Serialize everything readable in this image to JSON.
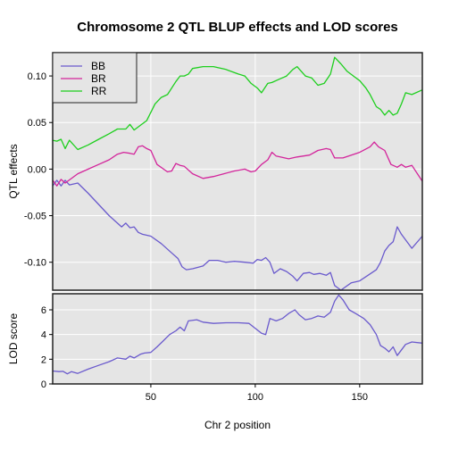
{
  "chart_data": {
    "title": "Chromosome 2 QTL BLUP effects and LOD scores",
    "xlabel": "Chr 2 position",
    "x_ticks": [
      50,
      100,
      150
    ],
    "xlim": [
      3,
      180
    ],
    "grid": true,
    "colors": {
      "panel_bg": "#e5e5e5",
      "grid": "#ffffff",
      "BB": "#6a5acd",
      "BR": "#d3259b",
      "RR": "#1ecf1e",
      "LOD": "#6a5acd"
    },
    "panels": [
      {
        "type": "line",
        "ylabel": "QTL effects",
        "ylim": [
          -0.13,
          0.125
        ],
        "y_ticks": [
          {
            "v": 0.1,
            "label": "0.10"
          },
          {
            "v": 0.05,
            "label": "0.05"
          },
          {
            "v": 0.0,
            "label": "0.00"
          },
          {
            "v": -0.05,
            "label": "-0.05"
          },
          {
            "v": -0.1,
            "label": "-0.10"
          }
        ],
        "legend": {
          "placement": "top-left",
          "entries": [
            "BB",
            "BR",
            "RR"
          ]
        },
        "series": [
          {
            "name": "BB",
            "points": [
              [
                3,
                -0.018
              ],
              [
                5,
                -0.012
              ],
              [
                7,
                -0.018
              ],
              [
                9,
                -0.012
              ],
              [
                11,
                -0.017
              ],
              [
                15,
                -0.015
              ],
              [
                20,
                -0.026
              ],
              [
                25,
                -0.038
              ],
              [
                30,
                -0.05
              ],
              [
                34,
                -0.058
              ],
              [
                36,
                -0.062
              ],
              [
                38,
                -0.058
              ],
              [
                40,
                -0.063
              ],
              [
                42,
                -0.062
              ],
              [
                44,
                -0.068
              ],
              [
                46,
                -0.07
              ],
              [
                50,
                -0.072
              ],
              [
                55,
                -0.08
              ],
              [
                60,
                -0.09
              ],
              [
                63,
                -0.096
              ],
              [
                65,
                -0.105
              ],
              [
                67,
                -0.108
              ],
              [
                70,
                -0.107
              ],
              [
                75,
                -0.104
              ],
              [
                78,
                -0.098
              ],
              [
                82,
                -0.098
              ],
              [
                86,
                -0.1
              ],
              [
                90,
                -0.099
              ],
              [
                95,
                -0.1
              ],
              [
                99,
                -0.101
              ],
              [
                101,
                -0.097
              ],
              [
                103,
                -0.098
              ],
              [
                105,
                -0.095
              ],
              [
                107,
                -0.1
              ],
              [
                109,
                -0.112
              ],
              [
                112,
                -0.107
              ],
              [
                115,
                -0.11
              ],
              [
                118,
                -0.115
              ],
              [
                120,
                -0.12
              ],
              [
                123,
                -0.112
              ],
              [
                126,
                -0.111
              ],
              [
                128,
                -0.113
              ],
              [
                131,
                -0.112
              ],
              [
                134,
                -0.114
              ],
              [
                136,
                -0.111
              ],
              [
                138,
                -0.125
              ],
              [
                141,
                -0.13
              ],
              [
                146,
                -0.122
              ],
              [
                150,
                -0.12
              ],
              [
                154,
                -0.114
              ],
              [
                158,
                -0.108
              ],
              [
                160,
                -0.1
              ],
              [
                162,
                -0.088
              ],
              [
                164,
                -0.082
              ],
              [
                166,
                -0.078
              ],
              [
                168,
                -0.062
              ],
              [
                170,
                -0.07
              ],
              [
                175,
                -0.085
              ],
              [
                180,
                -0.072
              ]
            ]
          },
          {
            "name": "BR",
            "points": [
              [
                3,
                -0.012
              ],
              [
                5,
                -0.018
              ],
              [
                7,
                -0.011
              ],
              [
                9,
                -0.015
              ],
              [
                15,
                -0.005
              ],
              [
                20,
                0.0
              ],
              [
                25,
                0.005
              ],
              [
                30,
                0.01
              ],
              [
                34,
                0.016
              ],
              [
                37,
                0.018
              ],
              [
                40,
                0.017
              ],
              [
                42,
                0.016
              ],
              [
                44,
                0.024
              ],
              [
                46,
                0.025
              ],
              [
                48,
                0.022
              ],
              [
                50,
                0.02
              ],
              [
                53,
                0.005
              ],
              [
                58,
                -0.003
              ],
              [
                60,
                -0.002
              ],
              [
                62,
                0.006
              ],
              [
                64,
                0.004
              ],
              [
                66,
                0.003
              ],
              [
                70,
                -0.005
              ],
              [
                75,
                -0.01
              ],
              [
                80,
                -0.008
              ],
              [
                85,
                -0.005
              ],
              [
                90,
                -0.002
              ],
              [
                95,
                0.0
              ],
              [
                98,
                -0.003
              ],
              [
                100,
                -0.002
              ],
              [
                103,
                0.005
              ],
              [
                106,
                0.01
              ],
              [
                108,
                0.018
              ],
              [
                110,
                0.014
              ],
              [
                112,
                0.013
              ],
              [
                116,
                0.011
              ],
              [
                120,
                0.013
              ],
              [
                126,
                0.015
              ],
              [
                130,
                0.02
              ],
              [
                134,
                0.022
              ],
              [
                136,
                0.021
              ],
              [
                138,
                0.012
              ],
              [
                142,
                0.012
              ],
              [
                146,
                0.015
              ],
              [
                150,
                0.018
              ],
              [
                155,
                0.024
              ],
              [
                157,
                0.029
              ],
              [
                159,
                0.024
              ],
              [
                162,
                0.02
              ],
              [
                165,
                0.005
              ],
              [
                168,
                0.002
              ],
              [
                170,
                0.005
              ],
              [
                172,
                0.002
              ],
              [
                175,
                0.004
              ],
              [
                180,
                -0.013
              ]
            ]
          },
          {
            "name": "RR",
            "points": [
              [
                3,
                0.031
              ],
              [
                5,
                0.03
              ],
              [
                7,
                0.032
              ],
              [
                9,
                0.022
              ],
              [
                11,
                0.031
              ],
              [
                15,
                0.021
              ],
              [
                20,
                0.026
              ],
              [
                25,
                0.032
              ],
              [
                30,
                0.038
              ],
              [
                34,
                0.043
              ],
              [
                38,
                0.043
              ],
              [
                40,
                0.048
              ],
              [
                42,
                0.042
              ],
              [
                45,
                0.047
              ],
              [
                48,
                0.052
              ],
              [
                52,
                0.07
              ],
              [
                55,
                0.077
              ],
              [
                58,
                0.08
              ],
              [
                62,
                0.094
              ],
              [
                64,
                0.1
              ],
              [
                66,
                0.1
              ],
              [
                68,
                0.102
              ],
              [
                70,
                0.108
              ],
              [
                75,
                0.11
              ],
              [
                80,
                0.11
              ],
              [
                86,
                0.107
              ],
              [
                92,
                0.102
              ],
              [
                95,
                0.1
              ],
              [
                98,
                0.092
              ],
              [
                101,
                0.087
              ],
              [
                103,
                0.082
              ],
              [
                106,
                0.092
              ],
              [
                108,
                0.093
              ],
              [
                112,
                0.097
              ],
              [
                115,
                0.1
              ],
              [
                118,
                0.107
              ],
              [
                120,
                0.11
              ],
              [
                124,
                0.1
              ],
              [
                127,
                0.098
              ],
              [
                130,
                0.09
              ],
              [
                133,
                0.092
              ],
              [
                136,
                0.102
              ],
              [
                138,
                0.12
              ],
              [
                141,
                0.113
              ],
              [
                144,
                0.105
              ],
              [
                147,
                0.1
              ],
              [
                150,
                0.095
              ],
              [
                153,
                0.087
              ],
              [
                155,
                0.08
              ],
              [
                158,
                0.067
              ],
              [
                160,
                0.064
              ],
              [
                162,
                0.058
              ],
              [
                164,
                0.063
              ],
              [
                166,
                0.058
              ],
              [
                168,
                0.06
              ],
              [
                170,
                0.07
              ],
              [
                172,
                0.082
              ],
              [
                175,
                0.08
              ],
              [
                180,
                0.085
              ]
            ]
          }
        ]
      },
      {
        "type": "line",
        "ylabel": "LOD score",
        "ylim": [
          0,
          7.3
        ],
        "y_ticks": [
          {
            "v": 0,
            "label": "0"
          },
          {
            "v": 2,
            "label": "2"
          },
          {
            "v": 4,
            "label": "4"
          },
          {
            "v": 6,
            "label": "6"
          }
        ],
        "series": [
          {
            "name": "LOD",
            "points": [
              [
                3,
                1.05
              ],
              [
                6,
                1.0
              ],
              [
                8,
                1.02
              ],
              [
                10,
                0.82
              ],
              [
                12,
                1.0
              ],
              [
                15,
                0.85
              ],
              [
                20,
                1.2
              ],
              [
                25,
                1.5
              ],
              [
                30,
                1.8
              ],
              [
                34,
                2.1
              ],
              [
                38,
                2.0
              ],
              [
                40,
                2.25
              ],
              [
                42,
                2.1
              ],
              [
                45,
                2.4
              ],
              [
                47,
                2.5
              ],
              [
                50,
                2.55
              ],
              [
                53,
                3.0
              ],
              [
                56,
                3.5
              ],
              [
                59,
                4.0
              ],
              [
                62,
                4.3
              ],
              [
                64,
                4.6
              ],
              [
                66,
                4.3
              ],
              [
                68,
                5.1
              ],
              [
                72,
                5.2
              ],
              [
                75,
                5.0
              ],
              [
                80,
                4.9
              ],
              [
                86,
                4.95
              ],
              [
                92,
                4.95
              ],
              [
                97,
                4.9
              ],
              [
                100,
                4.5
              ],
              [
                103,
                4.1
              ],
              [
                105,
                4.0
              ],
              [
                107,
                5.3
              ],
              [
                110,
                5.1
              ],
              [
                113,
                5.3
              ],
              [
                116,
                5.7
              ],
              [
                119,
                6.0
              ],
              [
                121,
                5.6
              ],
              [
                124,
                5.2
              ],
              [
                127,
                5.3
              ],
              [
                130,
                5.5
              ],
              [
                133,
                5.4
              ],
              [
                136,
                5.8
              ],
              [
                138,
                6.7
              ],
              [
                140,
                7.2
              ],
              [
                142,
                6.8
              ],
              [
                145,
                6.0
              ],
              [
                148,
                5.7
              ],
              [
                152,
                5.3
              ],
              [
                155,
                4.8
              ],
              [
                158,
                4.0
              ],
              [
                160,
                3.1
              ],
              [
                162,
                2.9
              ],
              [
                164,
                2.6
              ],
              [
                166,
                3.0
              ],
              [
                168,
                2.3
              ],
              [
                172,
                3.2
              ],
              [
                175,
                3.4
              ],
              [
                180,
                3.3
              ]
            ]
          }
        ]
      }
    ]
  }
}
